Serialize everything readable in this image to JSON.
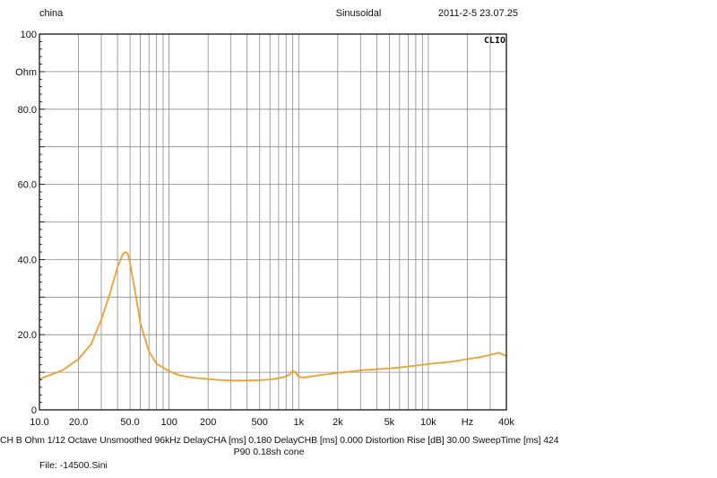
{
  "header": {
    "left": "china",
    "center": "Sinusoidal",
    "right": "2011-2-5 23.07.25"
  },
  "brand": "CLIO",
  "footer": {
    "settings": "CH B  Ohm   1/12 Octave   Unsmoothed   96kHz   DelayCHA [ms] 0.180   DelayCHB [ms] 0.000   Distortion Rise [dB] 30.00   SweepTime [ms] 424",
    "note": "P90 0.18sh cone",
    "file": "File: -14500.Sini"
  },
  "chart_data": {
    "type": "line",
    "x_scale": "log",
    "xlim": [
      10,
      40000
    ],
    "ylim": [
      0,
      100
    ],
    "x_tick_labels": [
      {
        "value": 10,
        "label": "10.0"
      },
      {
        "value": 20,
        "label": "20.0"
      },
      {
        "value": 50,
        "label": "50.0"
      },
      {
        "value": 100,
        "label": "100"
      },
      {
        "value": 200,
        "label": "200"
      },
      {
        "value": 500,
        "label": "500"
      },
      {
        "value": 1000,
        "label": "1k"
      },
      {
        "value": 2000,
        "label": "2k"
      },
      {
        "value": 5000,
        "label": "5k"
      },
      {
        "value": 10000,
        "label": "10k"
      },
      {
        "value": 20000,
        "label": "Hz"
      },
      {
        "value": 40000,
        "label": "40k"
      }
    ],
    "y_tick_labels": [
      {
        "value": 100,
        "label": "100"
      },
      {
        "value": 90,
        "label": "Ohm"
      },
      {
        "value": 80,
        "label": "80.0"
      },
      {
        "value": 60,
        "label": "60.0"
      },
      {
        "value": 40,
        "label": "40.0"
      },
      {
        "value": 20,
        "label": "20.0"
      },
      {
        "value": 0,
        "label": "0"
      }
    ],
    "grid": true,
    "line_color": "#f0a030",
    "series": [
      {
        "x": [
          10,
          15,
          20,
          25,
          30,
          35,
          40,
          44,
          46,
          48,
          50,
          55,
          60,
          70,
          80,
          100,
          120,
          150,
          200,
          250,
          300,
          400,
          500,
          600,
          700,
          800,
          850,
          900,
          950,
          1000,
          1100,
          1200,
          1500,
          2000,
          3000,
          4000,
          5000,
          6000,
          8000,
          10000,
          15000,
          20000,
          25000,
          30000,
          35000,
          40000
        ],
        "y": [
          8.2,
          10.5,
          13.5,
          17.5,
          24.0,
          31.0,
          38.0,
          41.5,
          42.0,
          41.5,
          39.0,
          31.0,
          23.0,
          15.5,
          12.3,
          10.3,
          9.2,
          8.6,
          8.2,
          7.9,
          7.8,
          7.8,
          7.9,
          8.1,
          8.4,
          8.9,
          9.4,
          10.4,
          9.8,
          8.8,
          8.6,
          8.8,
          9.3,
          9.8,
          10.5,
          10.8,
          11.0,
          11.3,
          11.8,
          12.2,
          12.8,
          13.5,
          14.0,
          14.6,
          15.2,
          14.3
        ]
      }
    ]
  }
}
